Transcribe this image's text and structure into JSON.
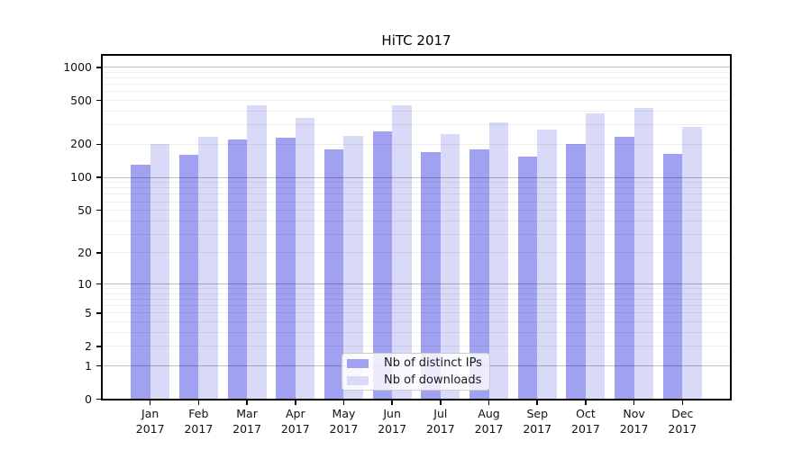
{
  "title": "HiTC 2017",
  "chart_data": {
    "type": "bar",
    "title": "HiTC 2017",
    "yscale": "log1p",
    "ylim": [
      0,
      1300
    ],
    "grid": true,
    "legend_position": "lower center",
    "categories": [
      "Jan",
      "Feb",
      "Mar",
      "Apr",
      "May",
      "Jun",
      "Jul",
      "Aug",
      "Sep",
      "Oct",
      "Nov",
      "Dec"
    ],
    "category_year": "2017",
    "yticks": [
      0,
      1,
      2,
      5,
      10,
      20,
      50,
      100,
      200,
      500,
      1000
    ],
    "series": [
      {
        "name": "Nb of distinct IPs",
        "color": "#a1a1f1",
        "values": [
          130,
          160,
          220,
          230,
          180,
          260,
          170,
          180,
          155,
          200,
          235,
          165
        ]
      },
      {
        "name": "Nb of downloads",
        "color": "#d9d9f8",
        "values": [
          200,
          235,
          450,
          350,
          240,
          455,
          250,
          315,
          275,
          385,
          425,
          290
        ]
      }
    ],
    "colors": {
      "axis": "#000000",
      "grid_major": "rgba(0,0,0,0.25)",
      "grid_minor": "rgba(0,0,0,0.065)"
    }
  }
}
